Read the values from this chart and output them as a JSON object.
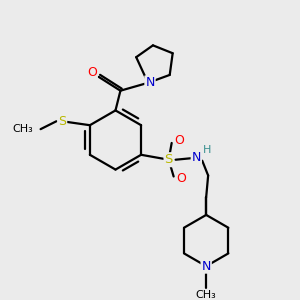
{
  "bg_color": "#ebebeb",
  "bond_color": "#000000",
  "atom_colors": {
    "O": "#ff0000",
    "N": "#0000cd",
    "S": "#b8b800",
    "H": "#3a9090",
    "C": "#000000"
  },
  "figsize": [
    3.0,
    3.0
  ],
  "dpi": 100,
  "lw": 1.6
}
